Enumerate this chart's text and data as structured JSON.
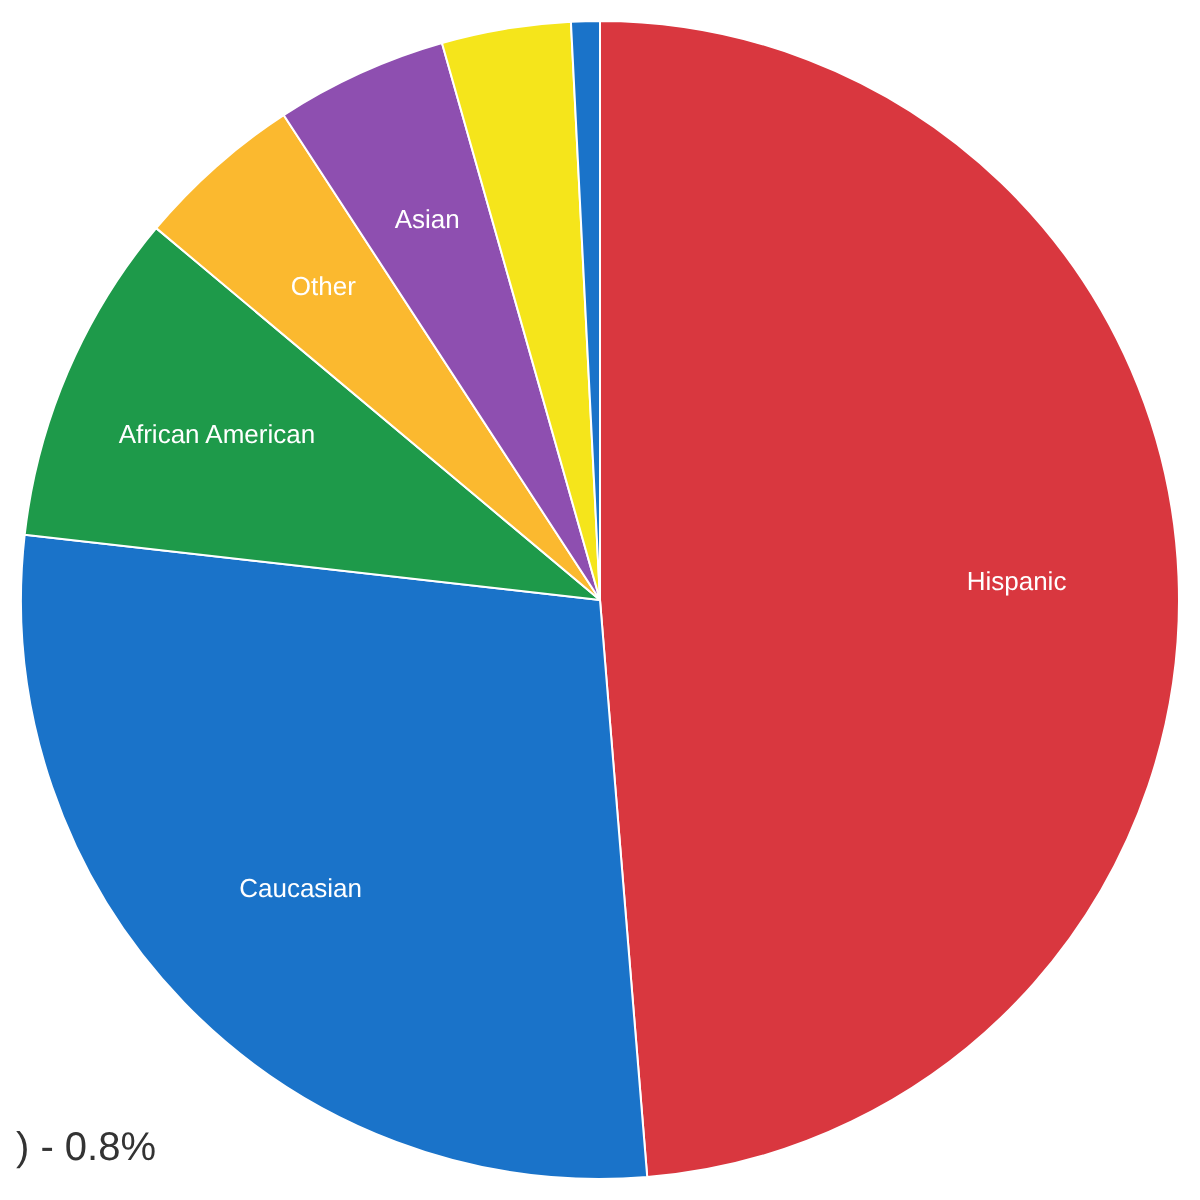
{
  "chart_data": {
    "type": "pie",
    "categories": [
      "Hispanic",
      "Caucasian",
      "African American",
      "Other",
      "Asian",
      null,
      null
    ],
    "values": [
      48.7,
      28.1,
      9.3,
      4.7,
      4.8,
      3.6,
      0.8
    ],
    "colors": [
      "#d9373f",
      "#1a73c9",
      "#1e9a4a",
      "#fbb92f",
      "#8e4fb0",
      "#f5e51b",
      "#1a73c9"
    ],
    "annotations": [
      ") - 0.8%"
    ],
    "legend": false
  }
}
